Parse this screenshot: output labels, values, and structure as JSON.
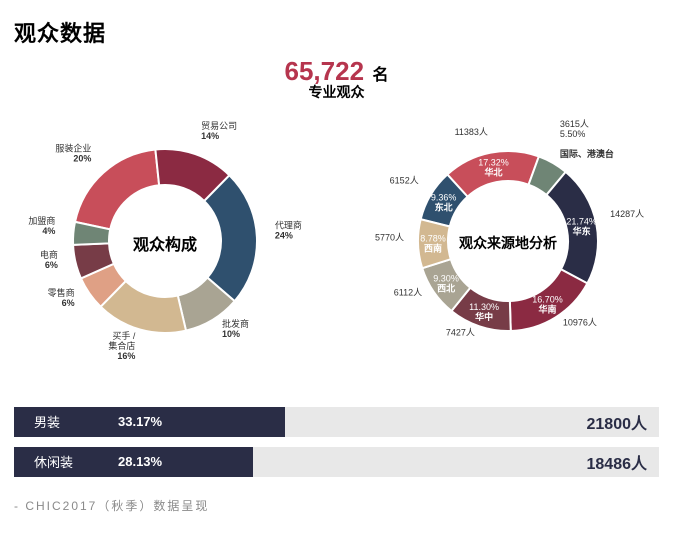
{
  "page_title": "观众数据",
  "headline": {
    "number": "65,722",
    "unit": "名",
    "sub": "专业观众"
  },
  "donut_left": {
    "center_label": "观众构成",
    "size": 290,
    "inner_r": 56,
    "outer_r": 92,
    "segments": [
      {
        "label": "服装企业",
        "pct": "20%",
        "value": 20,
        "color": "#c84e5a"
      },
      {
        "label": "贸易公司",
        "pct": "14%",
        "value": 14,
        "color": "#8b2a42"
      },
      {
        "label": "代理商",
        "pct": "24%",
        "value": 24,
        "color": "#2f506e"
      },
      {
        "label": "批发商",
        "pct": "10%",
        "value": 10,
        "color": "#a9a493"
      },
      {
        "label": "买手 /\n集合店",
        "pct": "16%",
        "value": 16,
        "color": "#d2b891"
      },
      {
        "label": "零售商",
        "pct": "6%",
        "value": 6,
        "color": "#dfa085"
      },
      {
        "label": "电商",
        "pct": "6%",
        "value": 6,
        "color": "#773c47"
      },
      {
        "label": "加盟商",
        "pct": "4%",
        "value": 4,
        "color": "#6f8575"
      }
    ],
    "start_angle_deg": -78
  },
  "donut_right": {
    "center_label": "观众来源地分析",
    "size": 290,
    "inner_r": 60,
    "outer_r": 90,
    "segments": [
      {
        "label": "东北",
        "sub": "6152人",
        "pct": "9.36%",
        "value": 9.36,
        "color": "#2f506e"
      },
      {
        "label": "华北",
        "sub": "11383人",
        "pct": "17.32%",
        "value": 17.32,
        "color": "#c84e5a"
      },
      {
        "label": "国际、港澳台",
        "sub": "3615人",
        "pct": "5.50%",
        "value": 5.5,
        "color": "#6f8575"
      },
      {
        "label": "华东",
        "sub": "14287人",
        "pct": "21.74%",
        "value": 21.74,
        "color": "#2a2d46"
      },
      {
        "label": "华南",
        "sub": "10976人",
        "pct": "16.70%",
        "value": 16.7,
        "color": "#8b2a42"
      },
      {
        "label": "华中",
        "sub": "7427人",
        "pct": "11.30%",
        "value": 11.3,
        "color": "#773c47"
      },
      {
        "label": "西北",
        "sub": "6112人",
        "pct": "9.30%",
        "value": 9.3,
        "color": "#a9a493"
      },
      {
        "label": "西南",
        "sub": "5770人",
        "pct": "8.78%",
        "value": 8.78,
        "color": "#d2b891"
      }
    ],
    "start_angle_deg": -76
  },
  "bars": [
    {
      "label": "男装",
      "pct": "33.17%",
      "value_text": "21800人",
      "fill_frac": 0.42,
      "bg": "#e8e8e8",
      "fg": "#2a2d46",
      "text_on_fill": "#ffffff",
      "text_on_bg": "#2a2d46"
    },
    {
      "label": "休闲装",
      "pct": "28.13%",
      "value_text": "18486人",
      "fill_frac": 0.37,
      "bg": "#e8e8e8",
      "fg": "#2a2d46",
      "text_on_fill": "#ffffff",
      "text_on_bg": "#2a2d46"
    }
  ],
  "footer": "- CHIC2017（秋季）数据呈现"
}
